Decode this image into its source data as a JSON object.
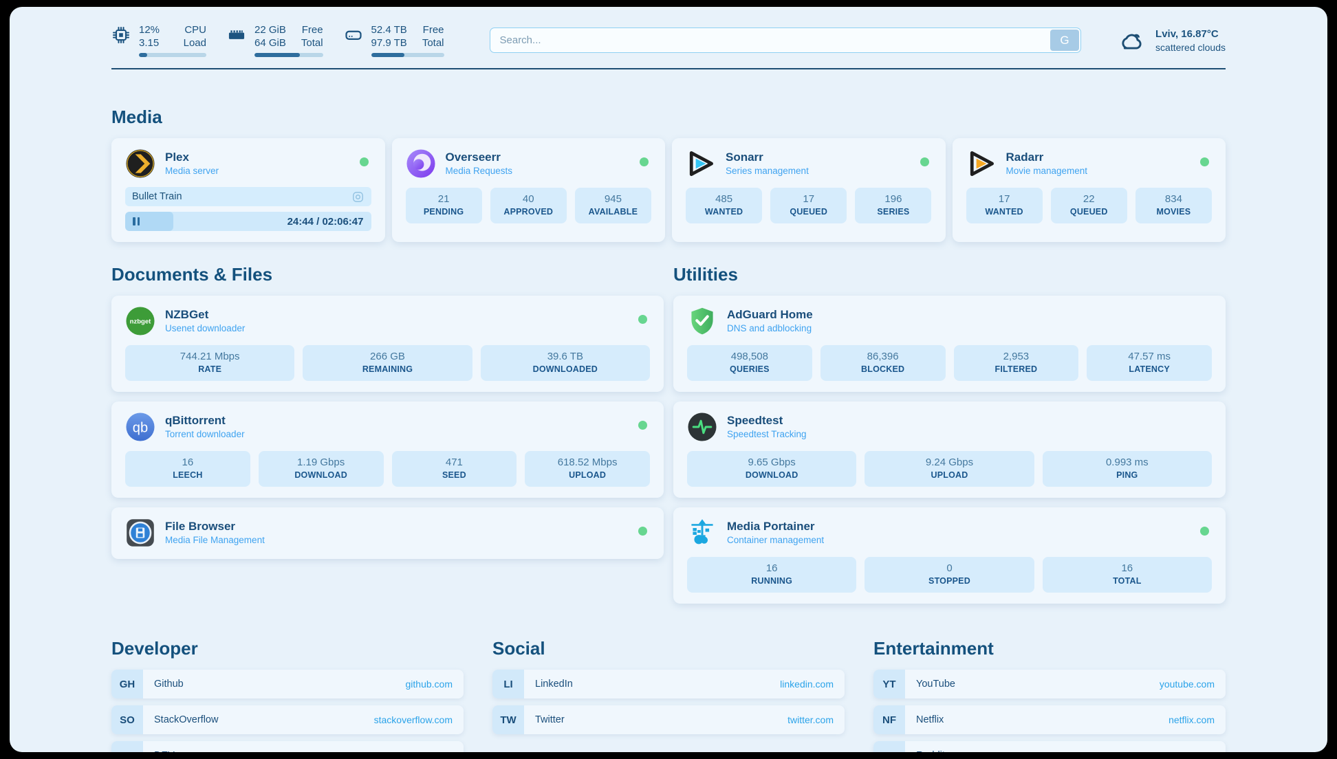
{
  "header": {
    "cpu": {
      "usage": "12%",
      "load": "3.15",
      "label_top": "CPU",
      "label_bottom": "Load",
      "progress_pct": 12
    },
    "memory": {
      "free": "22 GiB",
      "total": "64 GiB",
      "label_top": "Free",
      "label_bottom": "Total",
      "progress_pct": 66
    },
    "disk": {
      "free": "52.4 TB",
      "total": "97.9 TB",
      "label_top": "Free",
      "label_bottom": "Total",
      "progress_pct": 46
    },
    "search": {
      "placeholder": "Search...",
      "engine_button_label": "G"
    },
    "weather": {
      "location_temp": "Lviv, 16.87°C",
      "condition": "scattered clouds"
    }
  },
  "sections": {
    "media": {
      "title": "Media",
      "apps": [
        {
          "name": "Plex",
          "description": "Media server",
          "online": true,
          "now_playing": {
            "title": "Bullet Train",
            "elapsed_total": "24:44 / 02:06:47",
            "progress_pct": 19.5
          }
        },
        {
          "name": "Overseerr",
          "description": "Media Requests",
          "online": true,
          "stats": [
            {
              "value": "21",
              "label": "PENDING"
            },
            {
              "value": "40",
              "label": "APPROVED"
            },
            {
              "value": "945",
              "label": "AVAILABLE"
            }
          ]
        },
        {
          "name": "Sonarr",
          "description": "Series management",
          "online": true,
          "stats": [
            {
              "value": "485",
              "label": "WANTED"
            },
            {
              "value": "17",
              "label": "QUEUED"
            },
            {
              "value": "196",
              "label": "SERIES"
            }
          ]
        },
        {
          "name": "Radarr",
          "description": "Movie management",
          "online": true,
          "stats": [
            {
              "value": "17",
              "label": "WANTED"
            },
            {
              "value": "22",
              "label": "QUEUED"
            },
            {
              "value": "834",
              "label": "MOVIES"
            }
          ]
        }
      ]
    },
    "documents": {
      "title": "Documents & Files",
      "apps": [
        {
          "name": "NZBGet",
          "description": "Usenet downloader",
          "online": true,
          "stats": [
            {
              "value": "744.21 Mbps",
              "label": "RATE"
            },
            {
              "value": "266 GB",
              "label": "REMAINING"
            },
            {
              "value": "39.6 TB",
              "label": "DOWNLOADED"
            }
          ]
        },
        {
          "name": "qBittorrent",
          "description": "Torrent downloader",
          "online": true,
          "stats": [
            {
              "value": "16",
              "label": "LEECH"
            },
            {
              "value": "1.19 Gbps",
              "label": "DOWNLOAD"
            },
            {
              "value": "471",
              "label": "SEED"
            },
            {
              "value": "618.52 Mbps",
              "label": "UPLOAD"
            }
          ]
        },
        {
          "name": "File Browser",
          "description": "Media File Management",
          "online": true,
          "stats": []
        }
      ]
    },
    "utilities": {
      "title": "Utilities",
      "apps": [
        {
          "name": "AdGuard Home",
          "description": "DNS and adblocking",
          "online": false,
          "stats": [
            {
              "value": "498,508",
              "label": "QUERIES"
            },
            {
              "value": "86,396",
              "label": "BLOCKED"
            },
            {
              "value": "2,953",
              "label": "FILTERED"
            },
            {
              "value": "47.57 ms",
              "label": "LATENCY"
            }
          ]
        },
        {
          "name": "Speedtest",
          "description": "Speedtest Tracking",
          "online": false,
          "stats": [
            {
              "value": "9.65 Gbps",
              "label": "DOWNLOAD"
            },
            {
              "value": "9.24 Gbps",
              "label": "UPLOAD"
            },
            {
              "value": "0.993 ms",
              "label": "PING"
            }
          ]
        },
        {
          "name": "Media Portainer",
          "description": "Container management",
          "online": true,
          "stats": [
            {
              "value": "16",
              "label": "RUNNING"
            },
            {
              "value": "0",
              "label": "STOPPED"
            },
            {
              "value": "16",
              "label": "TOTAL"
            }
          ]
        }
      ]
    },
    "developer": {
      "title": "Developer",
      "bookmarks": [
        {
          "abbr": "GH",
          "name": "Github",
          "url": "github.com"
        },
        {
          "abbr": "SO",
          "name": "StackOverflow",
          "url": "stackoverflow.com"
        },
        {
          "abbr": "DT",
          "name": "DEV",
          "url": "dev.to"
        }
      ]
    },
    "social": {
      "title": "Social",
      "bookmarks": [
        {
          "abbr": "LI",
          "name": "LinkedIn",
          "url": "linkedin.com"
        },
        {
          "abbr": "TW",
          "name": "Twitter",
          "url": "twitter.com"
        }
      ]
    },
    "entertainment": {
      "title": "Entertainment",
      "bookmarks": [
        {
          "abbr": "YT",
          "name": "YouTube",
          "url": "youtube.com"
        },
        {
          "abbr": "NF",
          "name": "Netflix",
          "url": "netflix.com"
        },
        {
          "abbr": "RE",
          "name": "Reddit",
          "url": "reddit.com"
        }
      ]
    }
  },
  "icons": {
    "cpu": "chip-icon",
    "memory": "ram-stick-icon",
    "disk": "hard-drive-icon",
    "weather": "cloud-icon",
    "search_engine": "google-g",
    "plex": "amber-chevron-circle",
    "overseerr": "purple-eye-circle",
    "sonarr": "play-triangle-blue",
    "radarr": "play-triangle-yellow",
    "nzbget": "green-nzbget-circle",
    "qbittorrent": "blue-qb-circle",
    "filebrowser": "floppy-disk-tile",
    "adguard": "green-shield-check",
    "speedtest": "pulse-line-circle",
    "portainer": "crane-containers",
    "now_playing_media": "target-circle-icon",
    "player_state": "pause-icon",
    "status": "green-dot"
  },
  "colors": {
    "page_bg": "#e8f2fa",
    "card_bg": "#f0f7fd",
    "tile_bg": "#d6ecfc",
    "navy_text": "#1a4e7b",
    "heading": "#14517d",
    "subtitle_blue": "#3fa3f0",
    "link_blue": "#2ba3e9",
    "status_green": "#67d690",
    "bar_fill": "#2e6d9d",
    "bar_track": "#b9d6e8",
    "divider": "#1d4e73"
  }
}
